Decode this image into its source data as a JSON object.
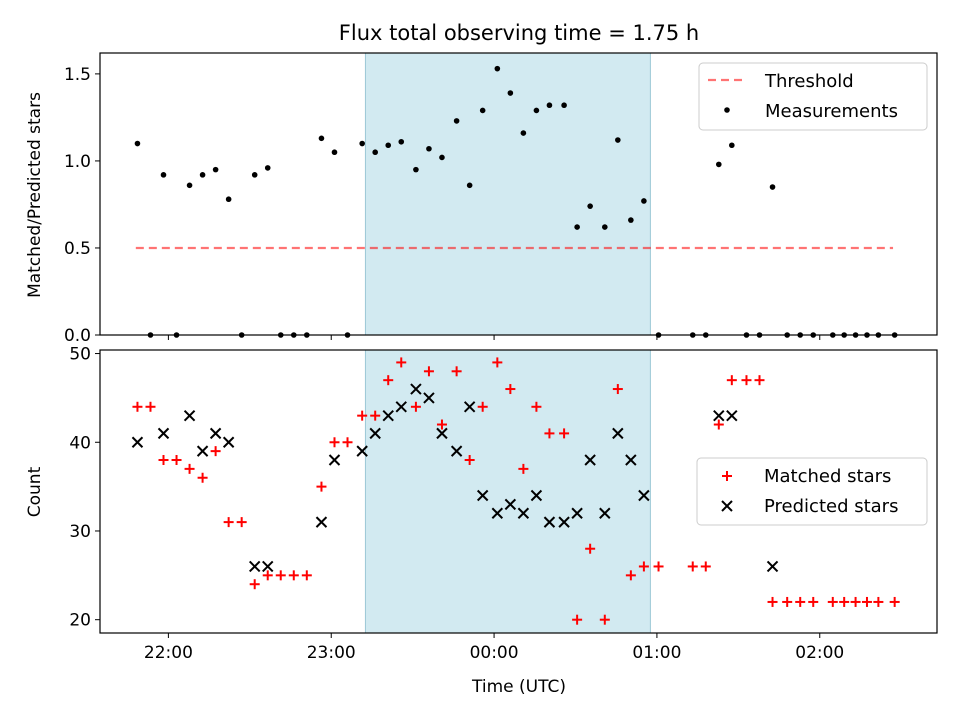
{
  "figure": {
    "title": "Flux total observing time = 1.75 h",
    "xlabel": "Time (UTC)",
    "x_ticks": [
      {
        "label": "22:00",
        "value": -2.0
      },
      {
        "label": "23:00",
        "value": -1.0
      },
      {
        "label": "00:00",
        "value": 0.0
      },
      {
        "label": "01:00",
        "value": 1.0
      },
      {
        "label": "02:00",
        "value": 2.0
      }
    ],
    "xlim": [
      -2.42,
      2.72
    ],
    "highlight_span": [
      -0.79,
      0.96
    ],
    "colors": {
      "highlight": "#add8e6",
      "threshold": "#ff0000",
      "measurements": "#000000",
      "matched": "#ff0000",
      "predicted": "#000000"
    }
  },
  "chart_data": [
    {
      "type": "scatter",
      "title": "Flux total observing time = 1.75 h",
      "ylabel": "Matched/Predicted stars",
      "ylim": [
        0,
        1.62
      ],
      "y_ticks": [
        "0.0",
        "0.5",
        "1.0",
        "1.5"
      ],
      "y_tick_values": [
        0.0,
        0.5,
        1.0,
        1.5
      ],
      "legend": {
        "position": "top-right",
        "entries": [
          "Threshold",
          "Measurements"
        ]
      },
      "threshold": {
        "name": "Threshold",
        "value": 0.5,
        "x_range": [
          -2.2,
          2.45
        ]
      },
      "series": [
        {
          "name": "Measurements",
          "points": [
            [
              -2.19,
              1.1
            ],
            [
              -2.11,
              0.0
            ],
            [
              -2.03,
              0.92
            ],
            [
              -1.95,
              0.0
            ],
            [
              -1.87,
              0.86
            ],
            [
              -1.79,
              0.92
            ],
            [
              -1.71,
              0.95
            ],
            [
              -1.63,
              0.78
            ],
            [
              -1.55,
              0.0
            ],
            [
              -1.47,
              0.92
            ],
            [
              -1.39,
              0.96
            ],
            [
              -1.31,
              0.0
            ],
            [
              -1.23,
              0.0
            ],
            [
              -1.15,
              0.0
            ],
            [
              -1.06,
              1.13
            ],
            [
              -0.98,
              1.05
            ],
            [
              -0.9,
              0.0
            ],
            [
              -0.81,
              1.1
            ],
            [
              -0.73,
              1.05
            ],
            [
              -0.65,
              1.09
            ],
            [
              -0.57,
              1.11
            ],
            [
              -0.48,
              0.95
            ],
            [
              -0.4,
              1.07
            ],
            [
              -0.32,
              1.02
            ],
            [
              -0.23,
              1.23
            ],
            [
              -0.15,
              0.86
            ],
            [
              -0.07,
              1.29
            ],
            [
              0.02,
              1.53
            ],
            [
              0.1,
              1.39
            ],
            [
              0.18,
              1.16
            ],
            [
              0.26,
              1.29
            ],
            [
              0.34,
              1.32
            ],
            [
              0.43,
              1.32
            ],
            [
              0.51,
              0.62
            ],
            [
              0.59,
              0.74
            ],
            [
              0.68,
              0.62
            ],
            [
              0.76,
              1.12
            ],
            [
              0.84,
              0.66
            ],
            [
              0.92,
              0.77
            ],
            [
              1.01,
              0.0
            ],
            [
              1.22,
              0.0
            ],
            [
              1.3,
              0.0
            ],
            [
              1.38,
              0.98
            ],
            [
              1.46,
              1.09
            ],
            [
              1.55,
              0.0
            ],
            [
              1.63,
              0.0
            ],
            [
              1.71,
              0.85
            ],
            [
              1.8,
              0.0
            ],
            [
              1.88,
              0.0
            ],
            [
              1.96,
              0.0
            ],
            [
              2.08,
              0.0
            ],
            [
              2.15,
              0.0
            ],
            [
              2.22,
              0.0
            ],
            [
              2.29,
              0.0
            ],
            [
              2.36,
              0.0
            ],
            [
              2.46,
              0.0
            ]
          ]
        }
      ]
    },
    {
      "type": "scatter",
      "ylabel": "Count",
      "ylim": [
        18.5,
        50.4
      ],
      "y_ticks": [
        "20",
        "30",
        "40",
        "50"
      ],
      "y_tick_values": [
        20,
        30,
        40,
        50
      ],
      "legend": {
        "position": "center-right",
        "entries": [
          "Matched stars",
          "Predicted stars"
        ]
      },
      "series": [
        {
          "name": "Matched stars",
          "marker": "+",
          "points": [
            [
              -2.19,
              44
            ],
            [
              -2.11,
              44
            ],
            [
              -2.03,
              38
            ],
            [
              -1.95,
              38
            ],
            [
              -1.87,
              37
            ],
            [
              -1.79,
              36
            ],
            [
              -1.71,
              39
            ],
            [
              -1.63,
              31
            ],
            [
              -1.55,
              31
            ],
            [
              -1.47,
              24
            ],
            [
              -1.39,
              25
            ],
            [
              -1.31,
              25
            ],
            [
              -1.23,
              25
            ],
            [
              -1.15,
              25
            ],
            [
              -1.06,
              35
            ],
            [
              -0.98,
              40
            ],
            [
              -0.9,
              40
            ],
            [
              -0.81,
              43
            ],
            [
              -0.73,
              43
            ],
            [
              -0.65,
              47
            ],
            [
              -0.57,
              49
            ],
            [
              -0.48,
              44
            ],
            [
              -0.4,
              48
            ],
            [
              -0.32,
              42
            ],
            [
              -0.23,
              48
            ],
            [
              -0.15,
              38
            ],
            [
              -0.07,
              44
            ],
            [
              0.02,
              49
            ],
            [
              0.1,
              46
            ],
            [
              0.18,
              37
            ],
            [
              0.26,
              44
            ],
            [
              0.34,
              41
            ],
            [
              0.43,
              41
            ],
            [
              0.51,
              20
            ],
            [
              0.59,
              28
            ],
            [
              0.68,
              20
            ],
            [
              0.76,
              46
            ],
            [
              0.84,
              25
            ],
            [
              0.92,
              26
            ],
            [
              1.01,
              26
            ],
            [
              1.22,
              26
            ],
            [
              1.3,
              26
            ],
            [
              1.38,
              42
            ],
            [
              1.46,
              47
            ],
            [
              1.55,
              47
            ],
            [
              1.63,
              47
            ],
            [
              1.71,
              22
            ],
            [
              1.8,
              22
            ],
            [
              1.88,
              22
            ],
            [
              1.96,
              22
            ],
            [
              2.08,
              22
            ],
            [
              2.15,
              22
            ],
            [
              2.22,
              22
            ],
            [
              2.29,
              22
            ],
            [
              2.36,
              22
            ],
            [
              2.46,
              22
            ]
          ]
        },
        {
          "name": "Predicted stars",
          "marker": "x",
          "points": [
            [
              -2.19,
              40
            ],
            [
              -2.03,
              41
            ],
            [
              -1.87,
              43
            ],
            [
              -1.79,
              39
            ],
            [
              -1.71,
              41
            ],
            [
              -1.63,
              40
            ],
            [
              -1.47,
              26
            ],
            [
              -1.39,
              26
            ],
            [
              -1.06,
              31
            ],
            [
              -0.98,
              38
            ],
            [
              -0.81,
              39
            ],
            [
              -0.73,
              41
            ],
            [
              -0.65,
              43
            ],
            [
              -0.57,
              44
            ],
            [
              -0.48,
              46
            ],
            [
              -0.4,
              45
            ],
            [
              -0.32,
              41
            ],
            [
              -0.23,
              39
            ],
            [
              -0.15,
              44
            ],
            [
              -0.07,
              34
            ],
            [
              0.02,
              32
            ],
            [
              0.1,
              33
            ],
            [
              0.18,
              32
            ],
            [
              0.26,
              34
            ],
            [
              0.34,
              31
            ],
            [
              0.43,
              31
            ],
            [
              0.51,
              32
            ],
            [
              0.59,
              38
            ],
            [
              0.68,
              32
            ],
            [
              0.76,
              41
            ],
            [
              0.84,
              38
            ],
            [
              0.92,
              34
            ],
            [
              1.38,
              43
            ],
            [
              1.46,
              43
            ],
            [
              1.71,
              26
            ]
          ]
        }
      ]
    }
  ]
}
